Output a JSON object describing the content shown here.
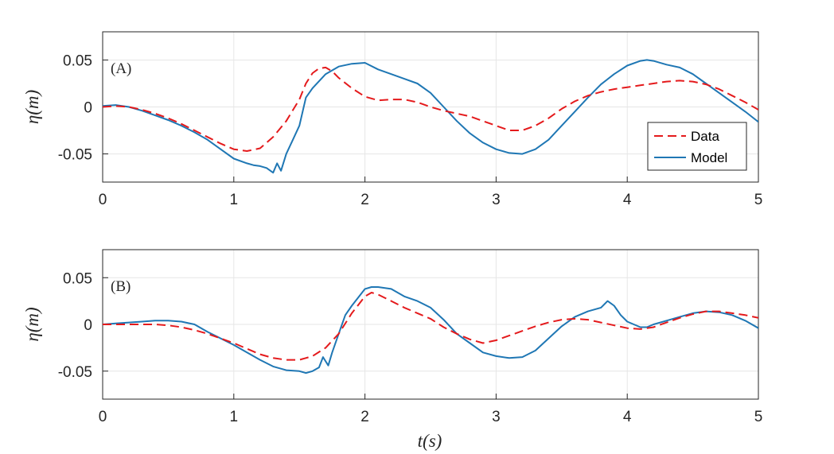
{
  "colors": {
    "data": "#e41a1c",
    "model": "#1f77b4",
    "grid": "#e6e6e6",
    "axes": "#262626"
  },
  "chart_data": [
    {
      "type": "line",
      "panel_label": "(A)",
      "xlabel": "",
      "ylabel": "η(m)",
      "xlim": [
        0,
        5
      ],
      "ylim": [
        -0.08,
        0.08
      ],
      "xticks": [
        0,
        1,
        2,
        3,
        4,
        5
      ],
      "xtick_labels": [
        "0",
        "1",
        "2",
        "3",
        "4",
        "5"
      ],
      "yticks": [
        -0.05,
        0,
        0.05
      ],
      "ytick_labels": [
        "-0.05",
        "0",
        "0.05"
      ],
      "grid": true,
      "legend": {
        "placement": "bottom-right",
        "entries": [
          "Data",
          "Model"
        ]
      },
      "series": [
        {
          "name": "Data",
          "style": "dashed",
          "color": "#e41a1c",
          "x": [
            0,
            0.1,
            0.2,
            0.3,
            0.4,
            0.5,
            0.6,
            0.7,
            0.8,
            0.9,
            1.0,
            1.1,
            1.2,
            1.3,
            1.4,
            1.5,
            1.55,
            1.6,
            1.65,
            1.7,
            1.75,
            1.8,
            1.9,
            2.0,
            2.1,
            2.2,
            2.3,
            2.4,
            2.5,
            2.6,
            2.7,
            2.8,
            2.9,
            3.0,
            3.1,
            3.2,
            3.3,
            3.4,
            3.5,
            3.6,
            3.7,
            3.8,
            3.9,
            4.0,
            4.1,
            4.2,
            4.3,
            4.4,
            4.5,
            4.6,
            4.7,
            4.8,
            4.9,
            5.0
          ],
          "y": [
            0.0,
            0.001,
            0.0,
            -0.003,
            -0.007,
            -0.012,
            -0.018,
            -0.025,
            -0.032,
            -0.039,
            -0.045,
            -0.047,
            -0.044,
            -0.032,
            -0.015,
            0.008,
            0.025,
            0.036,
            0.041,
            0.042,
            0.038,
            0.031,
            0.02,
            0.011,
            0.007,
            0.008,
            0.008,
            0.005,
            0.0,
            -0.004,
            -0.007,
            -0.01,
            -0.015,
            -0.02,
            -0.025,
            -0.025,
            -0.02,
            -0.012,
            -0.002,
            0.006,
            0.012,
            0.016,
            0.019,
            0.021,
            0.023,
            0.025,
            0.027,
            0.028,
            0.027,
            0.024,
            0.019,
            0.012,
            0.005,
            -0.003
          ]
        },
        {
          "name": "Model",
          "style": "solid",
          "color": "#1f77b4",
          "x": [
            0,
            0.1,
            0.2,
            0.3,
            0.4,
            0.5,
            0.6,
            0.7,
            0.8,
            0.9,
            1.0,
            1.1,
            1.15,
            1.2,
            1.25,
            1.3,
            1.33,
            1.36,
            1.4,
            1.45,
            1.5,
            1.55,
            1.6,
            1.7,
            1.8,
            1.9,
            2.0,
            2.1,
            2.2,
            2.3,
            2.4,
            2.5,
            2.6,
            2.7,
            2.8,
            2.9,
            3.0,
            3.1,
            3.2,
            3.3,
            3.4,
            3.5,
            3.6,
            3.7,
            3.8,
            3.9,
            4.0,
            4.1,
            4.15,
            4.2,
            4.3,
            4.4,
            4.5,
            4.6,
            4.7,
            4.8,
            4.9,
            5.0
          ],
          "y": [
            0.001,
            0.002,
            0.0,
            -0.004,
            -0.009,
            -0.014,
            -0.02,
            -0.027,
            -0.035,
            -0.045,
            -0.055,
            -0.06,
            -0.062,
            -0.063,
            -0.065,
            -0.07,
            -0.06,
            -0.068,
            -0.05,
            -0.035,
            -0.02,
            0.01,
            0.02,
            0.035,
            0.043,
            0.046,
            0.047,
            0.04,
            0.035,
            0.03,
            0.025,
            0.015,
            0.0,
            -0.015,
            -0.028,
            -0.038,
            -0.045,
            -0.049,
            -0.05,
            -0.045,
            -0.035,
            -0.02,
            -0.005,
            0.01,
            0.024,
            0.035,
            0.044,
            0.049,
            0.05,
            0.049,
            0.045,
            0.042,
            0.035,
            0.025,
            0.015,
            0.005,
            -0.005,
            -0.016
          ]
        }
      ]
    },
    {
      "type": "line",
      "panel_label": "(B)",
      "xlabel": "t(s)",
      "ylabel": "η(m)",
      "xlim": [
        0,
        5
      ],
      "ylim": [
        -0.08,
        0.08
      ],
      "xticks": [
        0,
        1,
        2,
        3,
        4,
        5
      ],
      "xtick_labels": [
        "0",
        "1",
        "2",
        "3",
        "4",
        "5"
      ],
      "yticks": [
        -0.05,
        0,
        0.05
      ],
      "ytick_labels": [
        "-0.05",
        "0",
        "0.05"
      ],
      "grid": true,
      "series": [
        {
          "name": "Data",
          "style": "dashed",
          "color": "#e41a1c",
          "x": [
            0,
            0.1,
            0.2,
            0.3,
            0.4,
            0.5,
            0.6,
            0.7,
            0.8,
            0.9,
            1.0,
            1.1,
            1.2,
            1.3,
            1.4,
            1.5,
            1.6,
            1.7,
            1.8,
            1.9,
            2.0,
            2.05,
            2.1,
            2.2,
            2.3,
            2.4,
            2.5,
            2.6,
            2.7,
            2.8,
            2.9,
            3.0,
            3.1,
            3.2,
            3.3,
            3.4,
            3.5,
            3.6,
            3.7,
            3.8,
            3.9,
            4.0,
            4.1,
            4.2,
            4.3,
            4.4,
            4.5,
            4.6,
            4.7,
            4.8,
            4.9,
            5.0
          ],
          "y": [
            0.0,
            0.0,
            0.0,
            0.0,
            0.0,
            -0.001,
            -0.003,
            -0.006,
            -0.01,
            -0.015,
            -0.02,
            -0.026,
            -0.032,
            -0.036,
            -0.038,
            -0.038,
            -0.034,
            -0.025,
            -0.01,
            0.012,
            0.03,
            0.034,
            0.032,
            0.025,
            0.018,
            0.012,
            0.006,
            -0.003,
            -0.01,
            -0.016,
            -0.02,
            -0.017,
            -0.012,
            -0.007,
            -0.002,
            0.002,
            0.005,
            0.006,
            0.005,
            0.002,
            -0.001,
            -0.004,
            -0.005,
            -0.003,
            0.002,
            0.007,
            0.011,
            0.014,
            0.014,
            0.012,
            0.01,
            0.007
          ]
        },
        {
          "name": "Model",
          "style": "solid",
          "color": "#1f77b4",
          "x": [
            0,
            0.1,
            0.2,
            0.3,
            0.4,
            0.5,
            0.6,
            0.7,
            0.8,
            0.9,
            1.0,
            1.1,
            1.2,
            1.3,
            1.4,
            1.5,
            1.55,
            1.6,
            1.65,
            1.68,
            1.72,
            1.75,
            1.8,
            1.85,
            1.9,
            2.0,
            2.05,
            2.1,
            2.2,
            2.3,
            2.4,
            2.5,
            2.6,
            2.7,
            2.8,
            2.9,
            3.0,
            3.1,
            3.2,
            3.3,
            3.4,
            3.5,
            3.6,
            3.7,
            3.8,
            3.85,
            3.9,
            3.95,
            4.0,
            4.1,
            4.15,
            4.2,
            4.3,
            4.4,
            4.5,
            4.6,
            4.7,
            4.8,
            4.9,
            5.0
          ],
          "y": [
            0.0,
            0.001,
            0.002,
            0.003,
            0.004,
            0.004,
            0.003,
            0.0,
            -0.008,
            -0.015,
            -0.022,
            -0.03,
            -0.038,
            -0.045,
            -0.049,
            -0.05,
            -0.052,
            -0.05,
            -0.046,
            -0.035,
            -0.044,
            -0.03,
            -0.01,
            0.01,
            0.02,
            0.038,
            0.04,
            0.04,
            0.038,
            0.03,
            0.025,
            0.018,
            0.005,
            -0.01,
            -0.02,
            -0.03,
            -0.034,
            -0.036,
            -0.035,
            -0.028,
            -0.015,
            -0.002,
            0.008,
            0.014,
            0.018,
            0.025,
            0.02,
            0.01,
            0.003,
            -0.003,
            -0.003,
            0.0,
            0.004,
            0.008,
            0.012,
            0.014,
            0.013,
            0.01,
            0.004,
            -0.004
          ]
        }
      ]
    }
  ]
}
